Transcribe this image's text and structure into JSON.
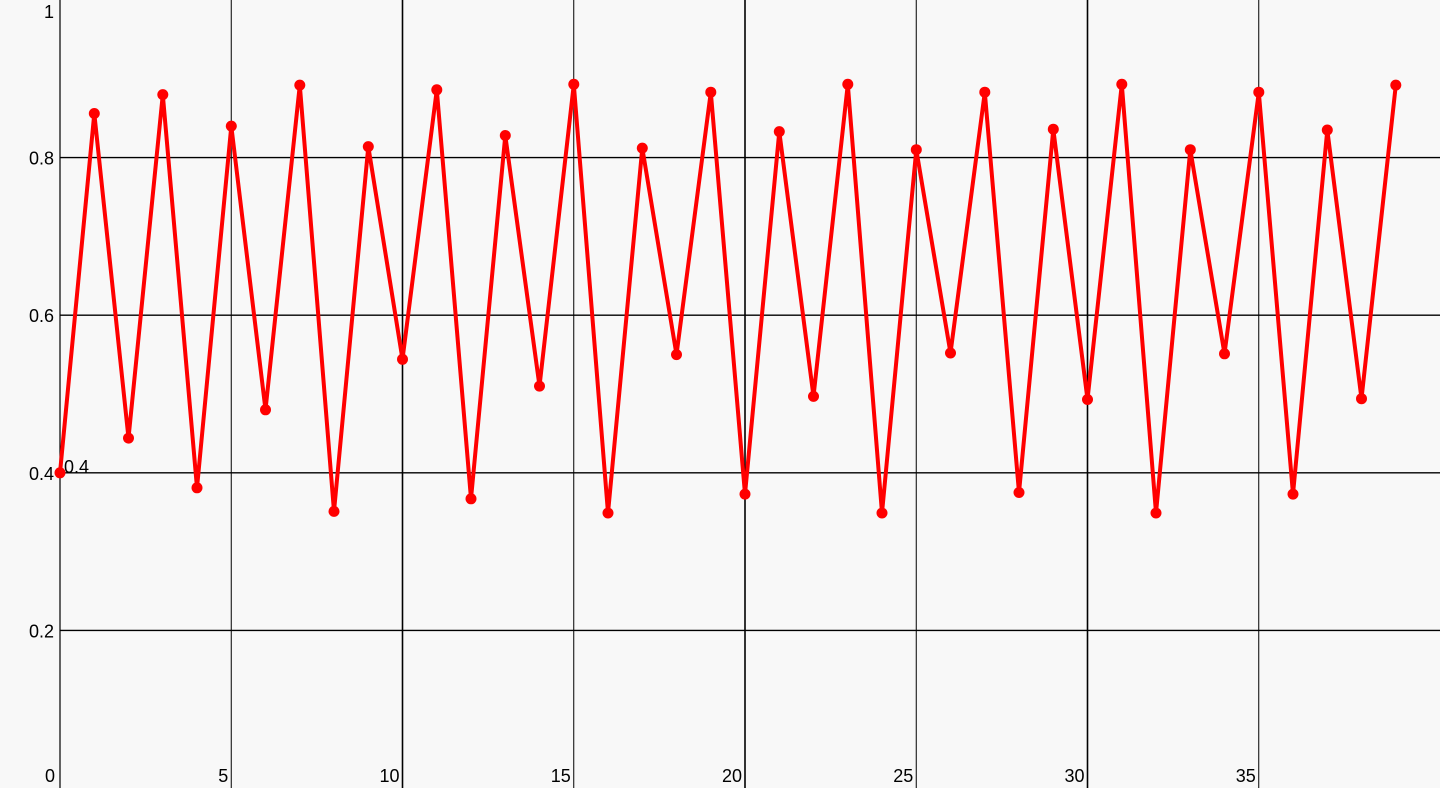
{
  "colors": {
    "background": "#f8f8f8",
    "grid": "#000000",
    "series": "#ff0000",
    "text": "#000000"
  },
  "chart_data": {
    "type": "line",
    "title": "",
    "xlabel": "",
    "ylabel": "",
    "xlim": [
      0,
      40
    ],
    "ylim": [
      0,
      1
    ],
    "grid": true,
    "x_ticks": [
      0,
      5,
      10,
      15,
      20,
      25,
      30,
      35
    ],
    "x_tick_labels": [
      "0",
      "5",
      "10",
      "15",
      "20",
      "25",
      "30",
      "35"
    ],
    "y_ticks": [
      0.2,
      0.4,
      0.6,
      0.8,
      1
    ],
    "y_tick_labels": [
      "0.2",
      "0.4",
      "0.6",
      "0.8",
      "1"
    ],
    "annotations": [
      {
        "x": 0,
        "y": 0.4,
        "text": "0.4"
      }
    ],
    "series": [
      {
        "marker": "circle",
        "x": [
          0,
          1,
          2,
          3,
          4,
          5,
          6,
          7,
          8,
          9,
          10,
          11,
          12,
          13,
          14,
          15,
          16,
          17,
          18,
          19,
          20,
          21,
          22,
          23,
          24,
          25,
          26,
          27,
          28,
          29,
          30,
          31,
          32,
          33,
          34,
          35,
          36,
          37,
          38,
          39
        ],
        "values": [
          0.4,
          0.856,
          0.444,
          0.88,
          0.381,
          0.84,
          0.48,
          0.892,
          0.351,
          0.814,
          0.544,
          0.886,
          0.367,
          0.828,
          0.51,
          0.893,
          0.349,
          0.812,
          0.55,
          0.883,
          0.373,
          0.833,
          0.497,
          0.893,
          0.349,
          0.81,
          0.552,
          0.883,
          0.375,
          0.836,
          0.493,
          0.893,
          0.349,
          0.81,
          0.551,
          0.883,
          0.373,
          0.835,
          0.494,
          0.892
        ]
      }
    ]
  }
}
